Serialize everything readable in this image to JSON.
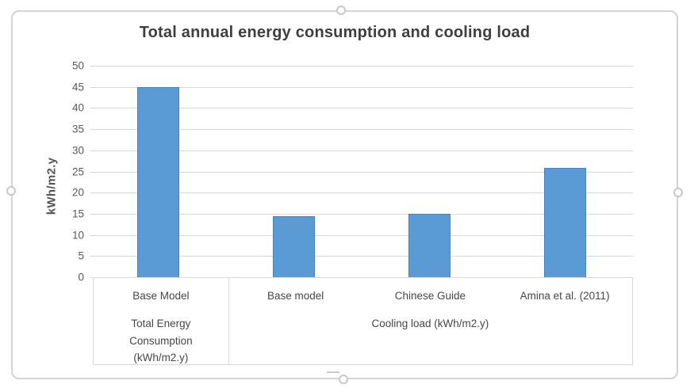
{
  "window": {
    "background_color": "#ffffff",
    "frame_border_color": "#d4d2d2",
    "selection_handles": [
      "top-center",
      "bottom-center",
      "left-middle",
      "right-middle"
    ]
  },
  "chart_data": {
    "type": "bar",
    "title": "Total annual energy consumption and cooling load",
    "ylabel": "kWh/m2.y",
    "xlabel": "",
    "ylim": [
      0,
      50
    ],
    "yticks": [
      0,
      5,
      10,
      15,
      20,
      25,
      30,
      35,
      40,
      45,
      50
    ],
    "grid": "horizontal",
    "legend_position": "none",
    "bar_color": "#5b9bd5",
    "gridline_color": "#d9d9d9",
    "title_color": "#3f3f3f",
    "axis_text_color": "#595959",
    "category_text_color": "#474747",
    "groups": [
      {
        "label": "Total Energy Consumption (kWh/m2.y)",
        "categories": [
          "Base Model"
        ],
        "values": [
          45
        ]
      },
      {
        "label": "Cooling load (kWh/m2.y)",
        "categories": [
          "Base model",
          "Chinese Guide",
          "Amina et al. (2011)"
        ],
        "values": [
          14.5,
          15,
          25.8
        ]
      }
    ]
  }
}
